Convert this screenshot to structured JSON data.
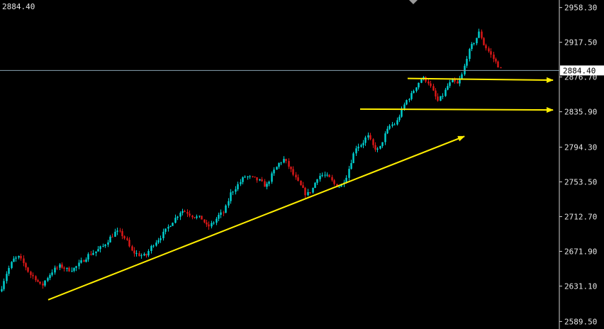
{
  "header": {
    "price_readout": "2884.40"
  },
  "colors": {
    "background": "#000000",
    "axis_text": "#e6e6e6",
    "bull_candle": "#00d4d4",
    "bear_candle": "#e01818",
    "current_price_line": "#8aa4b4",
    "annotation": "#ffee00"
  },
  "chart_data": {
    "type": "candlestick",
    "y_axis_ticks": [
      "2958.30",
      "2917.50",
      "2876.70",
      "2835.90",
      "2794.30",
      "2753.50",
      "2712.70",
      "2671.90",
      "2631.10",
      "2589.50"
    ],
    "ylim": [
      2584.0,
      2963.0
    ],
    "current_price": 2884.4,
    "current_price_label": "2884.40",
    "grid": false,
    "close_path": [
      [
        0,
        2625
      ],
      [
        8,
        2645
      ],
      [
        18,
        2662
      ],
      [
        26,
        2665
      ],
      [
        35,
        2655
      ],
      [
        42,
        2645
      ],
      [
        50,
        2640
      ],
      [
        58,
        2630
      ],
      [
        65,
        2640
      ],
      [
        75,
        2650
      ],
      [
        85,
        2655
      ],
      [
        95,
        2650
      ],
      [
        105,
        2652
      ],
      [
        115,
        2660
      ],
      [
        125,
        2668
      ],
      [
        135,
        2672
      ],
      [
        145,
        2678
      ],
      [
        155,
        2688
      ],
      [
        163,
        2695
      ],
      [
        170,
        2693
      ],
      [
        178,
        2685
      ],
      [
        185,
        2672
      ],
      [
        195,
        2668
      ],
      [
        205,
        2666
      ],
      [
        215,
        2680
      ],
      [
        225,
        2688
      ],
      [
        232,
        2695
      ],
      [
        240,
        2704
      ],
      [
        248,
        2712
      ],
      [
        255,
        2720
      ],
      [
        263,
        2718
      ],
      [
        270,
        2714
      ],
      [
        278,
        2712
      ],
      [
        285,
        2710
      ],
      [
        292,
        2700
      ],
      [
        300,
        2705
      ],
      [
        308,
        2714
      ],
      [
        316,
        2718
      ],
      [
        325,
        2740
      ],
      [
        335,
        2750
      ],
      [
        345,
        2760
      ],
      [
        355,
        2758
      ],
      [
        365,
        2755
      ],
      [
        375,
        2748
      ],
      [
        385,
        2765
      ],
      [
        393,
        2775
      ],
      [
        400,
        2780
      ],
      [
        408,
        2770
      ],
      [
        416,
        2758
      ],
      [
        424,
        2748
      ],
      [
        432,
        2738
      ],
      [
        440,
        2745
      ],
      [
        448,
        2760
      ],
      [
        456,
        2762
      ],
      [
        464,
        2758
      ],
      [
        472,
        2750
      ],
      [
        480,
        2748
      ],
      [
        488,
        2760
      ],
      [
        495,
        2778
      ],
      [
        502,
        2795
      ],
      [
        510,
        2798
      ],
      [
        518,
        2808
      ],
      [
        526,
        2795
      ],
      [
        534,
        2790
      ],
      [
        542,
        2808
      ],
      [
        550,
        2820
      ],
      [
        558,
        2822
      ],
      [
        565,
        2835
      ],
      [
        572,
        2848
      ],
      [
        580,
        2856
      ],
      [
        588,
        2868
      ],
      [
        595,
        2876
      ],
      [
        603,
        2872
      ],
      [
        610,
        2860
      ],
      [
        617,
        2848
      ],
      [
        624,
        2855
      ],
      [
        631,
        2866
      ],
      [
        638,
        2872
      ],
      [
        645,
        2868
      ],
      [
        652,
        2880
      ],
      [
        658,
        2900
      ],
      [
        664,
        2912
      ],
      [
        670,
        2920
      ],
      [
        676,
        2930
      ],
      [
        682,
        2915
      ],
      [
        688,
        2908
      ],
      [
        694,
        2900
      ],
      [
        700,
        2893
      ],
      [
        706,
        2886
      ]
    ],
    "annotations": [
      {
        "type": "arrow",
        "from": [
          68,
          2615
        ],
        "to": [
          655,
          2807
        ]
      },
      {
        "type": "arrow",
        "from": [
          575,
          2875
        ],
        "to": [
          780,
          2873
        ]
      },
      {
        "type": "arrow",
        "from": [
          508,
          2839
        ],
        "to": [
          780,
          2838
        ]
      }
    ]
  }
}
